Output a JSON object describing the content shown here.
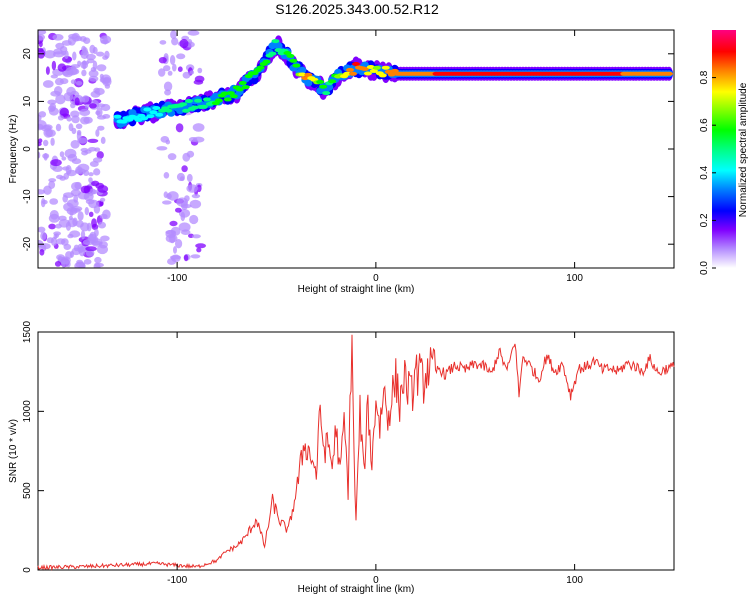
{
  "title": "S126.2025.343.00.52.R12",
  "chart_data": [
    {
      "type": "heatmap",
      "xlabel": "Height of straight line (km)",
      "ylabel": "Frequency (Hz)",
      "xlim": [
        -170,
        150
      ],
      "ylim": [
        -25,
        25
      ],
      "xticks": [
        -100,
        0,
        100
      ],
      "yticks": [
        20,
        10,
        0,
        -10,
        -20
      ],
      "colorbar": {
        "label": "Normalized spectral amplitude",
        "range": [
          0,
          1
        ],
        "ticks": [
          0.0,
          0.2,
          0.4,
          0.6,
          0.8
        ],
        "colors": [
          "#ffffff",
          "#b48cff",
          "#8000ff",
          "#0000ff",
          "#0080ff",
          "#00ffff",
          "#00ff80",
          "#00ff00",
          "#80ff00",
          "#ffff00",
          "#ff8000",
          "#ff0000",
          "#ff0080"
        ]
      },
      "ridge": [
        {
          "x": -130,
          "f": 6,
          "a": 0.4
        },
        {
          "x": -120,
          "f": 7,
          "a": 0.45
        },
        {
          "x": -110,
          "f": 8,
          "a": 0.45
        },
        {
          "x": -100,
          "f": 8.5,
          "a": 0.5
        },
        {
          "x": -90,
          "f": 9.5,
          "a": 0.5
        },
        {
          "x": -80,
          "f": 10.5,
          "a": 0.55
        },
        {
          "x": -70,
          "f": 12,
          "a": 0.55
        },
        {
          "x": -60,
          "f": 16,
          "a": 0.6
        },
        {
          "x": -55,
          "f": 19,
          "a": 0.55
        },
        {
          "x": -50,
          "f": 22,
          "a": 0.5
        },
        {
          "x": -45,
          "f": 20,
          "a": 0.55
        },
        {
          "x": -40,
          "f": 17,
          "a": 0.6
        },
        {
          "x": -35,
          "f": 15,
          "a": 0.85
        },
        {
          "x": -30,
          "f": 14,
          "a": 0.7
        },
        {
          "x": -25,
          "f": 12,
          "a": 0.5
        },
        {
          "x": -20,
          "f": 15,
          "a": 0.6
        },
        {
          "x": -10,
          "f": 17,
          "a": 0.9
        },
        {
          "x": 0,
          "f": 16.5,
          "a": 0.7
        },
        {
          "x": 10,
          "f": 15.8,
          "a": 0.85
        },
        {
          "x": 50,
          "f": 15.8,
          "a": 0.9
        },
        {
          "x": 100,
          "f": 15.8,
          "a": 0.9
        },
        {
          "x": 148,
          "f": 15.8,
          "a": 0.85
        }
      ]
    },
    {
      "type": "line",
      "xlabel": "Height of straight line (km)",
      "ylabel": "SNR (10 * v/v)",
      "xlim": [
        -170,
        150
      ],
      "ylim": [
        0,
        1500
      ],
      "xticks": [
        -100,
        0,
        100
      ],
      "yticks": [
        0,
        500,
        1000,
        1500
      ],
      "color": "#e8302c",
      "series": [
        {
          "x": [
            -170,
            -160,
            -150,
            -140,
            -130,
            -120,
            -110,
            -100,
            -90,
            -80,
            -75,
            -70,
            -66,
            -60,
            -56,
            -52,
            -48,
            -44,
            -40,
            -36,
            -32,
            -30,
            -28,
            -26,
            -24,
            -22,
            -20,
            -18,
            -16,
            -14,
            -12,
            -11,
            -10,
            -8,
            -6,
            -4,
            -2,
            0,
            2,
            4,
            6,
            8,
            10,
            12,
            14,
            16,
            18,
            20,
            22,
            24,
            26,
            28,
            30,
            32,
            35,
            40,
            45,
            50,
            55,
            58,
            62,
            66,
            70,
            72,
            74,
            78,
            82,
            86,
            90,
            94,
            98,
            102,
            106,
            110,
            114,
            118,
            122,
            126,
            130,
            134,
            138,
            142,
            146,
            150
          ],
          "y": [
            15,
            18,
            20,
            25,
            30,
            35,
            40,
            30,
            20,
            60,
            120,
            150,
            200,
            320,
            150,
            430,
            300,
            250,
            500,
            800,
            700,
            600,
            1000,
            750,
            800,
            650,
            900,
            600,
            950,
            500,
            1500,
            700,
            300,
            1000,
            600,
            1050,
            650,
            1100,
            900,
            1150,
            950,
            1100,
            1200,
            1050,
            1220,
            1150,
            1100,
            1250,
            1230,
            1180,
            1280,
            1260,
            1250,
            1270,
            1230,
            1290,
            1260,
            1300,
            1280,
            1230,
            1380,
            1250,
            1450,
            1100,
            1350,
            1280,
            1200,
            1350,
            1250,
            1300,
            1100,
            1270,
            1280,
            1320,
            1260,
            1270,
            1250,
            1300,
            1290,
            1250,
            1330,
            1240,
            1270,
            1280
          ]
        }
      ]
    }
  ]
}
